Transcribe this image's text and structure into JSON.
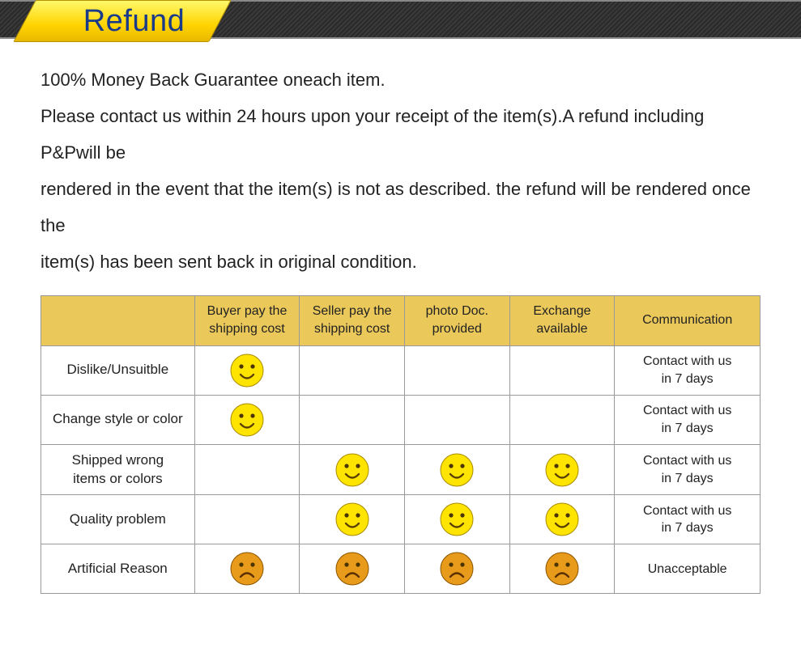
{
  "header": {
    "title": "Refund"
  },
  "policy": {
    "text": "100% Money Back Guarantee oneach item.\nPlease contact us within 24 hours upon your receipt of the item(s).A refund including P&Pwill be\nrendered in the event that the item(s) is not as described. the refund will be rendered once the\nitem(s) has been sent back in original condition."
  },
  "table": {
    "columns": [
      "",
      "Buyer pay the shipping cost",
      "Seller pay the shipping cost",
      "photo Doc. provided",
      "Exchange available",
      "Communication"
    ],
    "rows": [
      {
        "reason": "Dislike/Unsuitble",
        "buyer": "happy",
        "seller": "",
        "photo": "",
        "exchange": "",
        "comm": "Contact with us\nin 7 days"
      },
      {
        "reason": "Change style or color",
        "buyer": "happy",
        "seller": "",
        "photo": "",
        "exchange": "",
        "comm": "Contact with us\nin 7 days"
      },
      {
        "reason": "Shipped wrong\nitems or colors",
        "buyer": "",
        "seller": "happy",
        "photo": "happy",
        "exchange": "happy",
        "comm": "Contact with us\nin 7 days"
      },
      {
        "reason": "Quality problem",
        "buyer": "",
        "seller": "happy",
        "photo": "happy",
        "exchange": "happy",
        "comm": "Contact with us\nin 7 days"
      },
      {
        "reason": "Artificial Reason",
        "buyer": "sad",
        "seller": "sad",
        "photo": "sad",
        "exchange": "sad",
        "comm": "Unacceptable"
      }
    ],
    "icons": {
      "happy": {
        "fill": "#ffe400",
        "stroke": "#a88a00",
        "mouth": "smile"
      },
      "sad": {
        "fill": "#e89a1a",
        "stroke": "#8a5500",
        "mouth": "frown"
      }
    },
    "header_bg": "#eac85a",
    "border_color": "#999999"
  }
}
